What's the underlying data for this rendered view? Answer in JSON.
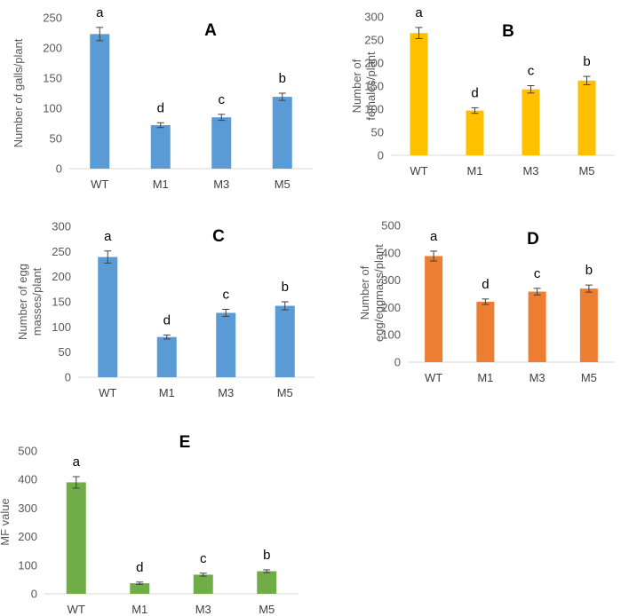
{
  "chart_data": [
    {
      "type": "bar",
      "title": "A",
      "ylabel": "Number of galls/plant",
      "categories": [
        "WT",
        "M1",
        "M3",
        "M5"
      ],
      "values": [
        223,
        72,
        85,
        119
      ],
      "errors": [
        11,
        4,
        5,
        6
      ],
      "significance": [
        "a",
        "d",
        "c",
        "b"
      ],
      "ylim": [
        0,
        250
      ],
      "yticks": [
        "0",
        "50",
        "100",
        "150",
        "200",
        "250"
      ],
      "color": "#5B9BD5",
      "grid": false
    },
    {
      "type": "bar",
      "title": "B",
      "ylabel": "Number of females/plant",
      "ylabel_lines": [
        "Number of",
        "females/plant"
      ],
      "categories": [
        "WT",
        "M1",
        "M3",
        "M5"
      ],
      "values": [
        265,
        97,
        143,
        162
      ],
      "errors": [
        12,
        6,
        8,
        9
      ],
      "significance": [
        "a",
        "d",
        "c",
        "b"
      ],
      "ylim": [
        0,
        300
      ],
      "yticks": [
        "0",
        "50",
        "100",
        "150",
        "200",
        "250",
        "300"
      ],
      "color": "#FFC000",
      "grid": false
    },
    {
      "type": "bar",
      "title": "C",
      "ylabel": "Number of egg masses/plant",
      "ylabel_lines": [
        "Number of egg",
        "masses/plant"
      ],
      "categories": [
        "WT",
        "M1",
        "M3",
        "M5"
      ],
      "values": [
        239,
        80,
        128,
        142
      ],
      "errors": [
        12,
        4,
        7,
        8
      ],
      "significance": [
        "a",
        "d",
        "c",
        "b"
      ],
      "ylim": [
        0,
        300
      ],
      "yticks": [
        "0",
        "50",
        "100",
        "150",
        "200",
        "250",
        "300"
      ],
      "color": "#5B9BD5",
      "grid": false
    },
    {
      "type": "bar",
      "title": "D",
      "ylabel": "Number of egg/eggmass/plant",
      "ylabel_lines": [
        "Number of",
        "egg/eggmass/plant"
      ],
      "categories": [
        "WT",
        "M1",
        "M3",
        "M5"
      ],
      "values": [
        388,
        221,
        258,
        269
      ],
      "errors": [
        18,
        10,
        12,
        13
      ],
      "significance": [
        "a",
        "d",
        "c",
        "b"
      ],
      "ylim": [
        0,
        500
      ],
      "yticks": [
        "0",
        "100",
        "200",
        "300",
        "400",
        "500"
      ],
      "color": "#ED7D31",
      "grid": false
    },
    {
      "type": "bar",
      "title": "E",
      "ylabel": "MF value",
      "categories": [
        "WT",
        "M1",
        "M3",
        "M5"
      ],
      "values": [
        390,
        37,
        67,
        79
      ],
      "errors": [
        20,
        4,
        5,
        5
      ],
      "significance": [
        "a",
        "d",
        "c",
        "b"
      ],
      "ylim": [
        0,
        500
      ],
      "yticks": [
        "0",
        "100",
        "200",
        "300",
        "400",
        "500"
      ],
      "color": "#70AD47",
      "grid": false
    }
  ]
}
